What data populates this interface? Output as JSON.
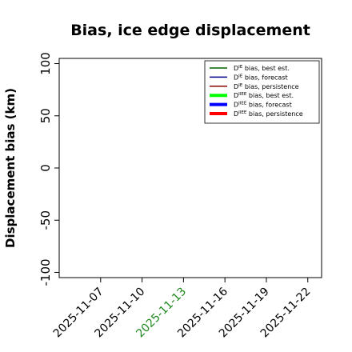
{
  "chart_data": {
    "type": "line",
    "title": "Bias, ice edge displacement",
    "ylabel": "Displacement bias (km)",
    "xlabel": "",
    "ylim": [
      -105,
      105
    ],
    "yticks": [
      100,
      50,
      0,
      -50,
      -100
    ],
    "x_range": [
      "2025-11-04",
      "2025-11-23"
    ],
    "xticks": [
      "2025-11-07",
      "2025-11-10",
      "2025-11-13",
      "2025-11-16",
      "2025-11-19",
      "2025-11-22"
    ],
    "xtick_colors": [
      "#000000",
      "#000000",
      "#228B22",
      "#000000",
      "#000000",
      "#000000"
    ],
    "grid": false,
    "legend_position": "top-right",
    "series": [
      {
        "name_prefix": "D",
        "name_sup": "IE",
        "name_suffix": " bias, best est.",
        "color": "#006400",
        "thick": false,
        "values": []
      },
      {
        "name_prefix": "D",
        "name_sup": "IE",
        "name_suffix": " bias, forecast",
        "color": "#00008B",
        "thick": false,
        "values": []
      },
      {
        "name_prefix": "D",
        "name_sup": "IE",
        "name_suffix": " bias, persistence",
        "color": "#8B0000",
        "thick": false,
        "values": []
      },
      {
        "name_prefix": "D",
        "name_sup": "IIEE",
        "name_suffix": " bias, best est.",
        "color": "#00FF00",
        "thick": true,
        "values": []
      },
      {
        "name_prefix": "D",
        "name_sup": "IIEE",
        "name_suffix": " bias, forecast",
        "color": "#0000FF",
        "thick": true,
        "values": []
      },
      {
        "name_prefix": "D",
        "name_sup": "IIEE",
        "name_suffix": " bias, persistence",
        "color": "#FF0000",
        "thick": true,
        "values": []
      }
    ]
  }
}
